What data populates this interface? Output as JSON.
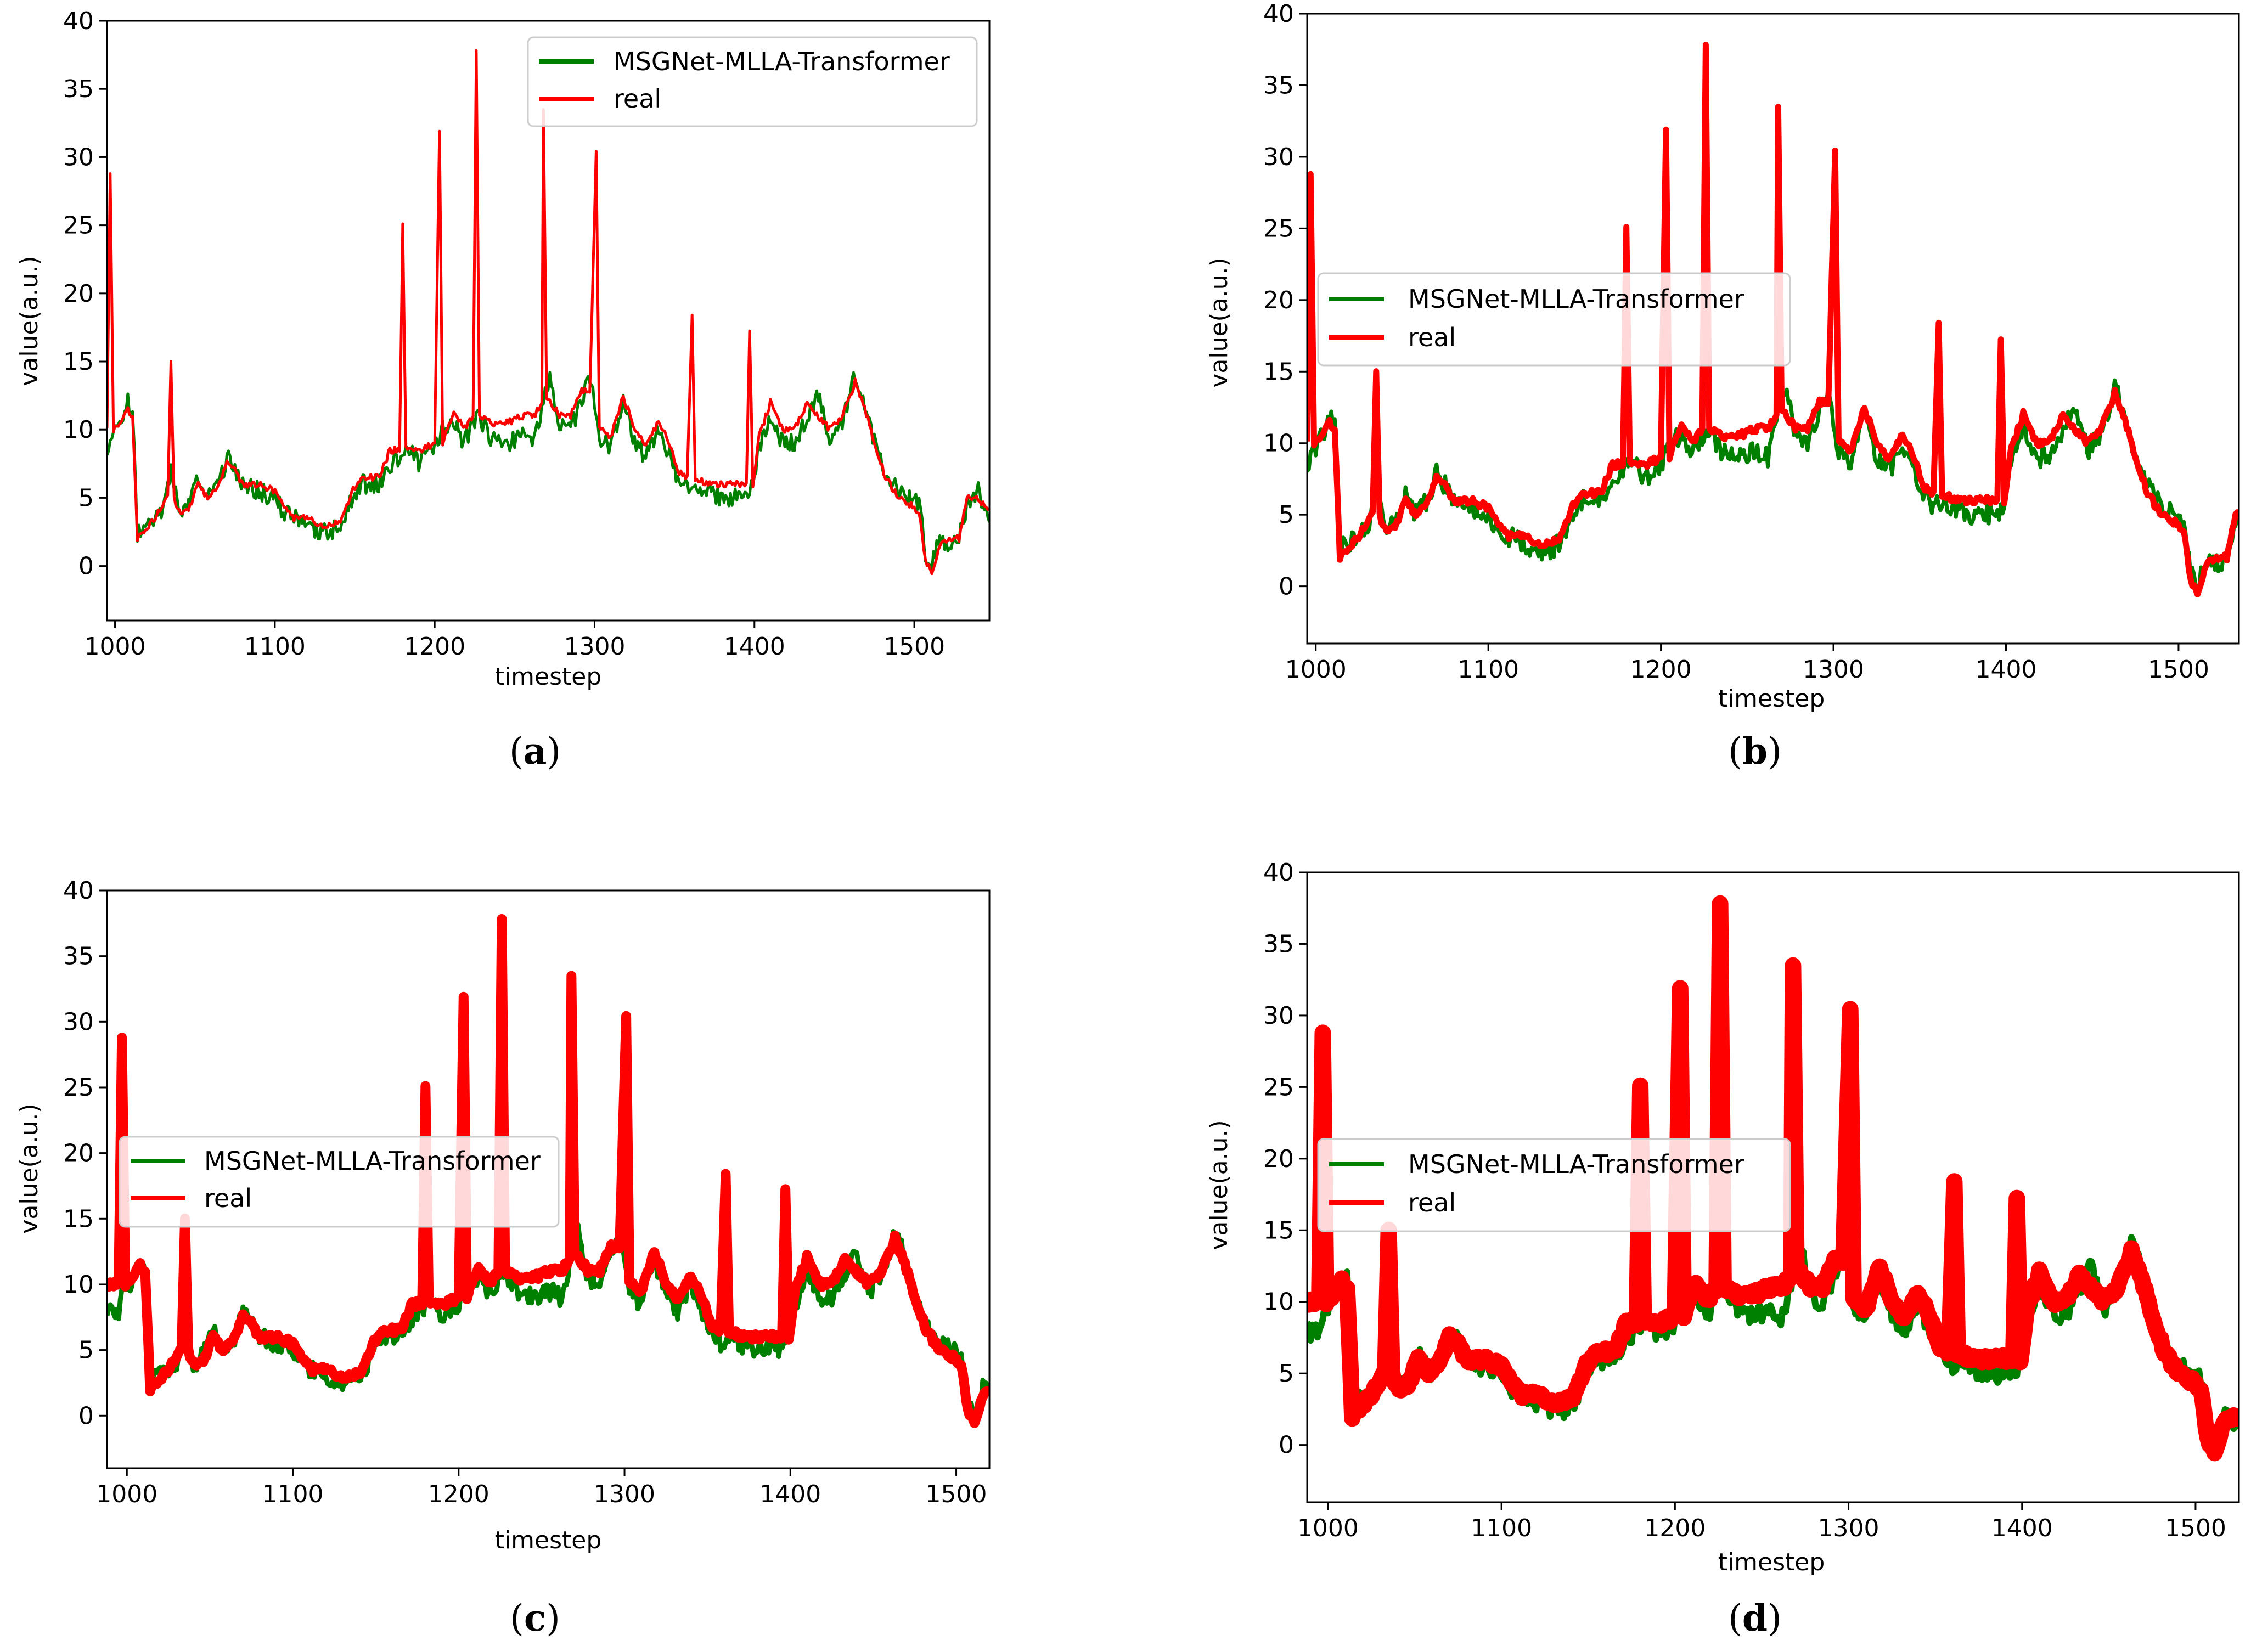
{
  "figure": {
    "panel_labels": [
      "a",
      "b",
      "c",
      "d"
    ]
  },
  "colors": {
    "predicted": "#008000",
    "real": "#ff0000",
    "axes": "#000000"
  },
  "chart_data": [
    {
      "panel": "a",
      "type": "line",
      "xlabel": "timestep",
      "ylabel": "value(a.u.)",
      "xlim": [
        995,
        1547
      ],
      "ylim": [
        -4,
        40
      ],
      "xticks": [
        1000,
        1100,
        1200,
        1300,
        1400,
        1500
      ],
      "yticks": [
        0,
        5,
        10,
        15,
        20,
        25,
        30,
        35,
        40
      ],
      "legend": {
        "entries": [
          "MSGNet-MLLA-Transformer",
          "real"
        ],
        "position": "upper-right"
      },
      "line_weight": "thin",
      "series": [
        {
          "name": "MSGNet-MLLA-Transformer",
          "role": "predicted"
        },
        {
          "name": "real",
          "role": "real"
        }
      ]
    },
    {
      "panel": "b",
      "type": "line",
      "xlabel": "timestep",
      "ylabel": "value(a.u.)",
      "xlim": [
        995,
        1535
      ],
      "ylim": [
        -4,
        40
      ],
      "xticks": [
        1000,
        1100,
        1200,
        1300,
        1400,
        1500
      ],
      "yticks": [
        0,
        5,
        10,
        15,
        20,
        25,
        30,
        35,
        40
      ],
      "legend": {
        "entries": [
          "MSGNet-MLLA-Transformer",
          "real"
        ],
        "position": "center-left"
      },
      "line_weight": "medium",
      "series": [
        {
          "name": "MSGNet-MLLA-Transformer",
          "role": "predicted"
        },
        {
          "name": "real",
          "role": "real"
        }
      ]
    },
    {
      "panel": "c",
      "type": "line",
      "xlabel": "timestep",
      "ylabel": "value(a.u.)",
      "xlim": [
        988,
        1520
      ],
      "ylim": [
        -4,
        40
      ],
      "xticks": [
        1000,
        1100,
        1200,
        1300,
        1400,
        1500
      ],
      "yticks": [
        0,
        5,
        10,
        15,
        20,
        25,
        30,
        35,
        40
      ],
      "legend": {
        "entries": [
          "MSGNet-MLLA-Transformer",
          "real"
        ],
        "position": "center-left"
      },
      "line_weight": "thick",
      "series": [
        {
          "name": "MSGNet-MLLA-Transformer",
          "role": "predicted"
        },
        {
          "name": "real",
          "role": "real"
        }
      ]
    },
    {
      "panel": "d",
      "type": "line",
      "xlabel": "timestep",
      "ylabel": "value(a.u.)",
      "xlim": [
        988,
        1525
      ],
      "ylim": [
        -4,
        40
      ],
      "xticks": [
        1000,
        1100,
        1200,
        1300,
        1400,
        1500
      ],
      "yticks": [
        0,
        5,
        10,
        15,
        20,
        25,
        30,
        35,
        40
      ],
      "legend": {
        "entries": [
          "MSGNet-MLLA-Transformer",
          "real"
        ],
        "position": "center-left"
      },
      "line_weight": "extra-thick",
      "series": [
        {
          "name": "MSGNet-MLLA-Transformer",
          "role": "predicted"
        },
        {
          "name": "real",
          "role": "real"
        }
      ]
    }
  ],
  "signal": {
    "note": "Approximate signal read from the plots (timestep, value).",
    "real_knots": [
      [
        995,
        10
      ],
      [
        997,
        29
      ],
      [
        999,
        10
      ],
      [
        1004,
        10.5
      ],
      [
        1008,
        11.5
      ],
      [
        1011,
        11
      ],
      [
        1014,
        2
      ],
      [
        1018,
        2.5
      ],
      [
        1025,
        3.5
      ],
      [
        1030,
        4.5
      ],
      [
        1033,
        5
      ],
      [
        1035,
        15
      ],
      [
        1037,
        5
      ],
      [
        1040,
        4
      ],
      [
        1046,
        4
      ],
      [
        1052,
        6
      ],
      [
        1058,
        5
      ],
      [
        1065,
        6
      ],
      [
        1070,
        7.5
      ],
      [
        1075,
        7
      ],
      [
        1080,
        6
      ],
      [
        1090,
        6
      ],
      [
        1100,
        5.5
      ],
      [
        1105,
        4.5
      ],
      [
        1112,
        3.5
      ],
      [
        1120,
        3.5
      ],
      [
        1128,
        3
      ],
      [
        1135,
        3
      ],
      [
        1142,
        3.5
      ],
      [
        1148,
        5.5
      ],
      [
        1155,
        6.5
      ],
      [
        1165,
        6.5
      ],
      [
        1172,
        8.5
      ],
      [
        1178,
        8.5
      ],
      [
        1180,
        25
      ],
      [
        1182,
        8.5
      ],
      [
        1190,
        8.5
      ],
      [
        1200,
        9
      ],
      [
        1203,
        32
      ],
      [
        1205,
        9
      ],
      [
        1212,
        11.5
      ],
      [
        1218,
        10
      ],
      [
        1224,
        11
      ],
      [
        1226,
        38
      ],
      [
        1228,
        11
      ],
      [
        1235,
        10.5
      ],
      [
        1245,
        10.5
      ],
      [
        1255,
        11
      ],
      [
        1262,
        11
      ],
      [
        1267,
        12
      ],
      [
        1268,
        33.5
      ],
      [
        1270,
        12.5
      ],
      [
        1278,
        11
      ],
      [
        1285,
        11
      ],
      [
        1292,
        13
      ],
      [
        1297,
        12.5
      ],
      [
        1301,
        30.5
      ],
      [
        1303,
        10
      ],
      [
        1310,
        9.5
      ],
      [
        1318,
        12.5
      ],
      [
        1325,
        10
      ],
      [
        1332,
        9
      ],
      [
        1340,
        10.5
      ],
      [
        1347,
        9
      ],
      [
        1352,
        7
      ],
      [
        1358,
        6.5
      ],
      [
        1361,
        18.5
      ],
      [
        1363,
        6.5
      ],
      [
        1370,
        6
      ],
      [
        1380,
        6
      ],
      [
        1395,
        6
      ],
      [
        1397,
        17.5
      ],
      [
        1399,
        6
      ],
      [
        1403,
        9.5
      ],
      [
        1410,
        12
      ],
      [
        1418,
        10
      ],
      [
        1425,
        10
      ],
      [
        1433,
        12
      ],
      [
        1440,
        11
      ],
      [
        1447,
        10
      ],
      [
        1455,
        11
      ],
      [
        1463,
        13.5
      ],
      [
        1468,
        12
      ],
      [
        1475,
        9
      ],
      [
        1482,
        6.5
      ],
      [
        1490,
        5
      ],
      [
        1498,
        4.5
      ],
      [
        1503,
        4
      ],
      [
        1507,
        0.5
      ],
      [
        1511,
        -0.5
      ],
      [
        1516,
        1.5
      ],
      [
        1522,
        2
      ],
      [
        1528,
        2
      ],
      [
        1533,
        5
      ],
      [
        1540,
        5
      ],
      [
        1547,
        4
      ]
    ],
    "predicted_knots": [
      [
        995,
        8
      ],
      [
        998,
        9.5
      ],
      [
        1004,
        10.5
      ],
      [
        1008,
        12
      ],
      [
        1011,
        11.5
      ],
      [
        1014,
        2.5
      ],
      [
        1018,
        3
      ],
      [
        1025,
        3.5
      ],
      [
        1030,
        4
      ],
      [
        1035,
        7
      ],
      [
        1040,
        4
      ],
      [
        1046,
        4.5
      ],
      [
        1052,
        6.5
      ],
      [
        1058,
        5
      ],
      [
        1065,
        6
      ],
      [
        1070,
        8
      ],
      [
        1075,
        7
      ],
      [
        1080,
        6
      ],
      [
        1090,
        5.5
      ],
      [
        1100,
        5
      ],
      [
        1105,
        4
      ],
      [
        1112,
        3.5
      ],
      [
        1120,
        3
      ],
      [
        1128,
        2.5
      ],
      [
        1135,
        2.5
      ],
      [
        1142,
        3
      ],
      [
        1148,
        5
      ],
      [
        1155,
        6
      ],
      [
        1165,
        6
      ],
      [
        1172,
        7.5
      ],
      [
        1178,
        8
      ],
      [
        1182,
        9
      ],
      [
        1190,
        7.5
      ],
      [
        1200,
        8.5
      ],
      [
        1205,
        10
      ],
      [
        1212,
        10.5
      ],
      [
        1218,
        9
      ],
      [
        1224,
        10.5
      ],
      [
        1228,
        11
      ],
      [
        1235,
        9.5
      ],
      [
        1245,
        9
      ],
      [
        1255,
        9.5
      ],
      [
        1262,
        9
      ],
      [
        1268,
        12
      ],
      [
        1272,
        14
      ],
      [
        1278,
        10.5
      ],
      [
        1285,
        10
      ],
      [
        1292,
        12
      ],
      [
        1297,
        14
      ],
      [
        1303,
        9.5
      ],
      [
        1310,
        8.5
      ],
      [
        1318,
        12
      ],
      [
        1325,
        9
      ],
      [
        1332,
        8
      ],
      [
        1340,
        10
      ],
      [
        1347,
        8
      ],
      [
        1352,
        6.5
      ],
      [
        1358,
        5.5
      ],
      [
        1363,
        6
      ],
      [
        1370,
        5.5
      ],
      [
        1380,
        5
      ],
      [
        1395,
        5
      ],
      [
        1399,
        6
      ],
      [
        1403,
        8.5
      ],
      [
        1410,
        11
      ],
      [
        1418,
        9
      ],
      [
        1425,
        9
      ],
      [
        1433,
        11
      ],
      [
        1440,
        12.5
      ],
      [
        1447,
        9.5
      ],
      [
        1455,
        10.5
      ],
      [
        1463,
        14
      ],
      [
        1468,
        12.5
      ],
      [
        1475,
        9
      ],
      [
        1482,
        7
      ],
      [
        1490,
        5.5
      ],
      [
        1498,
        5
      ],
      [
        1503,
        4.5
      ],
      [
        1507,
        1
      ],
      [
        1511,
        0
      ],
      [
        1516,
        2
      ],
      [
        1522,
        1.5
      ],
      [
        1528,
        2
      ],
      [
        1533,
        4.5
      ],
      [
        1540,
        5.5
      ],
      [
        1547,
        3.5
      ]
    ]
  }
}
